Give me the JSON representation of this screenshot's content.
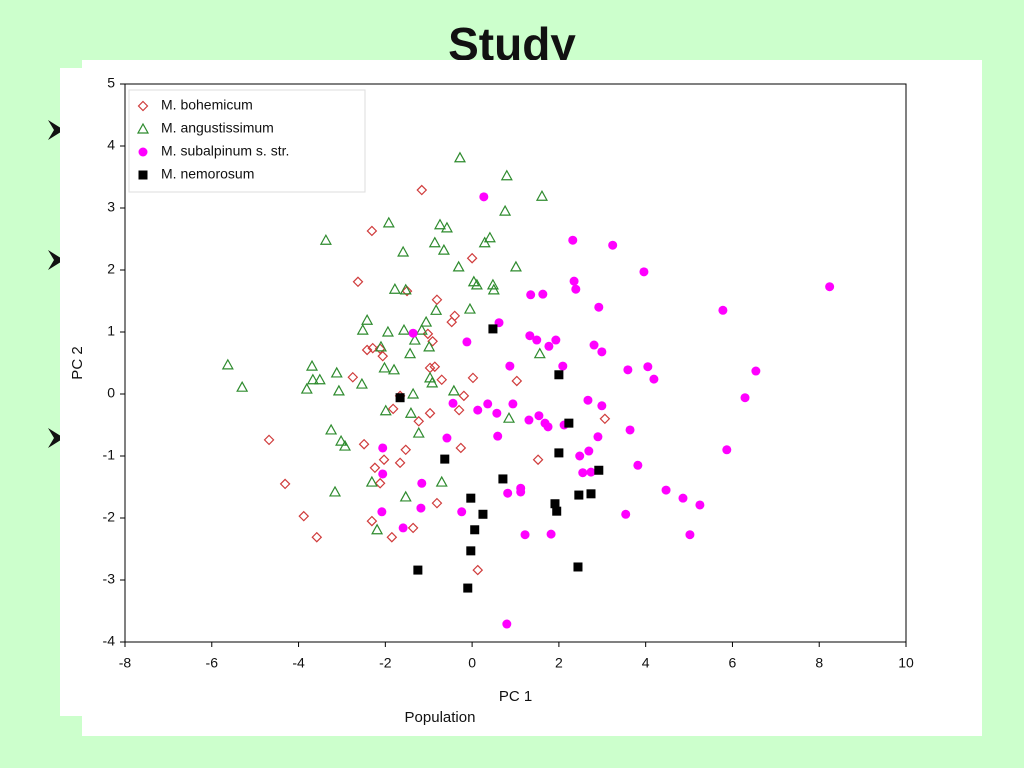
{
  "slide": {
    "title": "Study",
    "caption": "Population"
  },
  "chart_data": {
    "type": "scatter",
    "xlabel": "PC 1",
    "ylabel": "PC 2",
    "xlim": [
      -8,
      10
    ],
    "ylim": [
      -4,
      5
    ],
    "xticks": [
      -8,
      -6,
      -4,
      -2,
      0,
      2,
      4,
      6,
      8,
      10
    ],
    "yticks": [
      -4,
      -3,
      -2,
      -1,
      0,
      1,
      2,
      3,
      4,
      5
    ],
    "grid": false,
    "legend": "upper left",
    "series": [
      {
        "name": "M. bohemicum",
        "color": "#d03c3c",
        "marker": "diamond",
        "x": [
          -1.16,
          -2.31,
          0.0,
          -2.63,
          -1.5,
          -0.81,
          -0.4,
          -0.47,
          -1.02,
          -0.91,
          -2.29,
          -2.12,
          -2.42,
          -2.06,
          -0.97,
          -0.86,
          -0.7,
          0.02,
          1.03,
          -2.75,
          -1.66,
          -1.82,
          -0.3,
          -0.19,
          -0.97,
          3.06,
          -1.23,
          -4.68,
          -2.49,
          -0.26,
          -1.53,
          -2.03,
          -1.66,
          -2.24,
          1.52,
          -4.31,
          -2.12,
          -0.81,
          -3.88,
          -2.31,
          -1.36,
          -1.85,
          -3.58,
          0.13
        ],
        "values": [
          3.29,
          2.63,
          2.19,
          1.81,
          1.66,
          1.52,
          1.26,
          1.16,
          0.97,
          0.85,
          0.74,
          0.73,
          0.71,
          0.61,
          0.42,
          0.44,
          0.23,
          0.26,
          0.21,
          0.27,
          -0.03,
          -0.24,
          -0.26,
          -0.03,
          -0.31,
          -0.4,
          -0.44,
          -0.74,
          -0.81,
          -0.87,
          -0.9,
          -1.06,
          -1.11,
          -1.19,
          -1.06,
          -1.45,
          -1.44,
          -1.76,
          -1.97,
          -2.05,
          -2.16,
          -2.31,
          -2.31,
          -2.84
        ]
      },
      {
        "name": "M. angustissimum",
        "color": "#2e8b2e",
        "marker": "triangle",
        "x": [
          -0.28,
          0.8,
          1.61,
          0.76,
          -1.92,
          -0.74,
          -0.58,
          -3.37,
          0.41,
          0.29,
          -0.86,
          -1.59,
          -0.65,
          -0.31,
          1.01,
          0.04,
          0.11,
          0.48,
          0.5,
          -1.78,
          -1.53,
          -0.83,
          -0.05,
          -2.42,
          -1.06,
          -1.16,
          -1.57,
          -2.52,
          -1.94,
          -1.32,
          -2.1,
          -0.99,
          -1.43,
          1.56,
          -5.63,
          -3.69,
          -2.02,
          -1.8,
          -3.12,
          -3.51,
          -3.67,
          -0.97,
          -0.92,
          -2.54,
          -3.07,
          -3.81,
          -5.3,
          -0.42,
          -1.36,
          -1.99,
          -1.41,
          0.85,
          -3.25,
          -3.02,
          -2.93,
          -1.23,
          -0.7,
          -2.31,
          -3.16,
          -1.53,
          -2.19
        ],
        "values": [
          3.81,
          3.52,
          3.19,
          2.95,
          2.76,
          2.73,
          2.68,
          2.48,
          2.52,
          2.44,
          2.44,
          2.29,
          2.32,
          2.05,
          2.05,
          1.81,
          1.76,
          1.76,
          1.68,
          1.69,
          1.68,
          1.35,
          1.37,
          1.19,
          1.16,
          1.03,
          1.03,
          1.03,
          1.0,
          0.87,
          0.76,
          0.76,
          0.65,
          0.65,
          0.47,
          0.45,
          0.42,
          0.39,
          0.34,
          0.23,
          0.23,
          0.26,
          0.18,
          0.16,
          0.05,
          0.08,
          0.11,
          0.05,
          0.0,
          -0.27,
          -0.31,
          -0.39,
          -0.58,
          -0.76,
          -0.84,
          -0.63,
          -1.42,
          -1.42,
          -1.58,
          -1.66,
          -2.19
        ]
      },
      {
        "name": "M. subalpinum s. str.",
        "color": "#ff00ff",
        "marker": "circle",
        "x": [
          0.27,
          2.32,
          3.24,
          3.96,
          2.35,
          2.39,
          1.63,
          1.35,
          2.92,
          5.78,
          8.24,
          0.62,
          -1.36,
          1.33,
          1.49,
          1.93,
          1.77,
          -0.12,
          2.81,
          2.99,
          0.87,
          2.09,
          3.59,
          4.05,
          4.19,
          6.54,
          6.29,
          -0.44,
          0.36,
          0.94,
          0.13,
          0.57,
          1.54,
          2.67,
          2.99,
          1.68,
          1.31,
          1.75,
          2.12,
          3.64,
          -0.58,
          0.59,
          2.9,
          -2.06,
          2.69,
          2.48,
          5.87,
          3.82,
          -2.06,
          2.55,
          2.74,
          -1.16,
          1.12,
          1.12,
          0.82,
          4.47,
          4.86,
          5.25,
          -2.08,
          -1.18,
          -0.24,
          3.54,
          -1.59,
          1.22,
          1.82,
          5.02,
          0.8
        ],
        "values": [
          3.18,
          2.48,
          2.4,
          1.97,
          1.82,
          1.69,
          1.61,
          1.6,
          1.4,
          1.35,
          1.73,
          1.15,
          0.98,
          0.94,
          0.87,
          0.87,
          0.77,
          0.84,
          0.79,
          0.68,
          0.45,
          0.45,
          0.39,
          0.44,
          0.24,
          0.37,
          -0.06,
          -0.15,
          -0.16,
          -0.16,
          -0.26,
          -0.31,
          -0.35,
          -0.1,
          -0.19,
          -0.47,
          -0.42,
          -0.53,
          -0.5,
          -0.58,
          -0.71,
          -0.68,
          -0.69,
          -0.87,
          -0.92,
          -1.0,
          -0.9,
          -1.15,
          -1.29,
          -1.27,
          -1.26,
          -1.44,
          -1.52,
          -1.58,
          -1.6,
          -1.55,
          -1.68,
          -1.79,
          -1.9,
          -1.84,
          -1.9,
          -1.94,
          -2.16,
          -2.27,
          -2.26,
          -2.27,
          -3.71
        ]
      },
      {
        "name": "M. nemorosum",
        "color": "#000000",
        "marker": "square",
        "x": [
          0.48,
          2.0,
          -1.66,
          2.23,
          2.0,
          -0.63,
          2.92,
          0.71,
          -0.03,
          2.74,
          2.46,
          1.91,
          1.95,
          0.25,
          0.06,
          -0.03,
          -1.25,
          2.44,
          -0.1
        ],
        "values": [
          1.05,
          0.31,
          -0.06,
          -0.47,
          -0.95,
          -1.05,
          -1.23,
          -1.37,
          -1.68,
          -1.61,
          -1.63,
          -1.77,
          -1.89,
          -1.94,
          -2.19,
          -2.53,
          -2.84,
          -2.79,
          -3.13
        ]
      }
    ]
  }
}
